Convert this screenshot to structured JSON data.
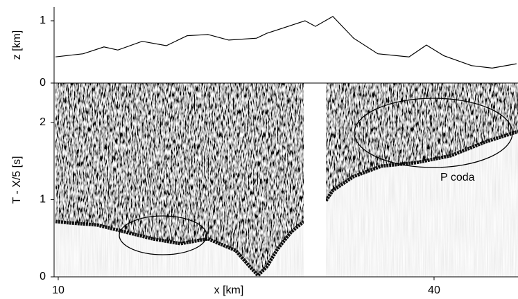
{
  "chart_data": [
    {
      "type": "line",
      "ylabel": "z [km]",
      "x": [
        9.78,
        11.99,
        13.65,
        14.76,
        16.7,
        18.63,
        20.29,
        21.95,
        23.61,
        25.83,
        26.66,
        28.04,
        29.7,
        30.53,
        31.92,
        33.58,
        35.51,
        38.0,
        39.39,
        40.77,
        42.99,
        44.64,
        46.58
      ],
      "values": [
        0.42,
        0.47,
        0.58,
        0.53,
        0.67,
        0.6,
        0.76,
        0.78,
        0.69,
        0.72,
        0.8,
        0.89,
        1.0,
        0.91,
        1.07,
        0.72,
        0.47,
        0.42,
        0.61,
        0.44,
        0.28,
        0.24,
        0.31
      ],
      "color": "#000000",
      "xlim": [
        9.67,
        46.7
      ],
      "ylim": [
        0,
        1.2
      ],
      "yticks": [
        0,
        1
      ]
    },
    {
      "type": "image",
      "ylabel": "T - X/5 [s]",
      "xlabel": "x [km]",
      "xlim": [
        9.67,
        46.7
      ],
      "xticks": [
        10,
        40
      ],
      "ylim": [
        0,
        2.51
      ],
      "yticks": [
        0,
        1,
        2
      ],
      "annotation": "P coda"
    }
  ]
}
